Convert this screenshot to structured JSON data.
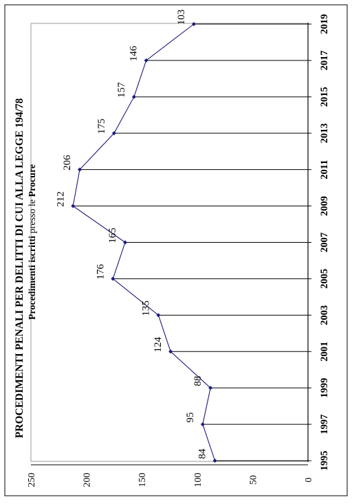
{
  "chart_data": {
    "type": "line",
    "title": "PROCEDIMENTI PENALI PER DELITTI DI CUI ALLA LEGGE 194/78",
    "subtitle_parts": [
      {
        "text": "Procedimenti iscritti",
        "bold": true
      },
      {
        "text": " presso le ",
        "bold": false
      },
      {
        "text": "Procure",
        "bold": true
      }
    ],
    "categories": [
      "1995",
      "1997",
      "1999",
      "2001",
      "2003",
      "2005",
      "2007",
      "2009",
      "2011",
      "2013",
      "2015",
      "2017",
      "2019"
    ],
    "series": [
      {
        "values": [
          84,
          95,
          88,
          124,
          135,
          176,
          165,
          212,
          206,
          175,
          157,
          146,
          103
        ]
      }
    ],
    "data_labels": [
      "84",
      "95",
      "88",
      "124",
      "135",
      "176",
      "165",
      "212",
      "206",
      "175",
      "157",
      "146",
      "103"
    ],
    "yticks": [
      "0",
      "50",
      "100",
      "150",
      "200",
      "250"
    ],
    "ylim": [
      0,
      250
    ],
    "drop_lines": true,
    "orientation": "rotated-90-ccw",
    "line_color": "#1a1a7a",
    "marker_color": "#1a1a7a"
  }
}
